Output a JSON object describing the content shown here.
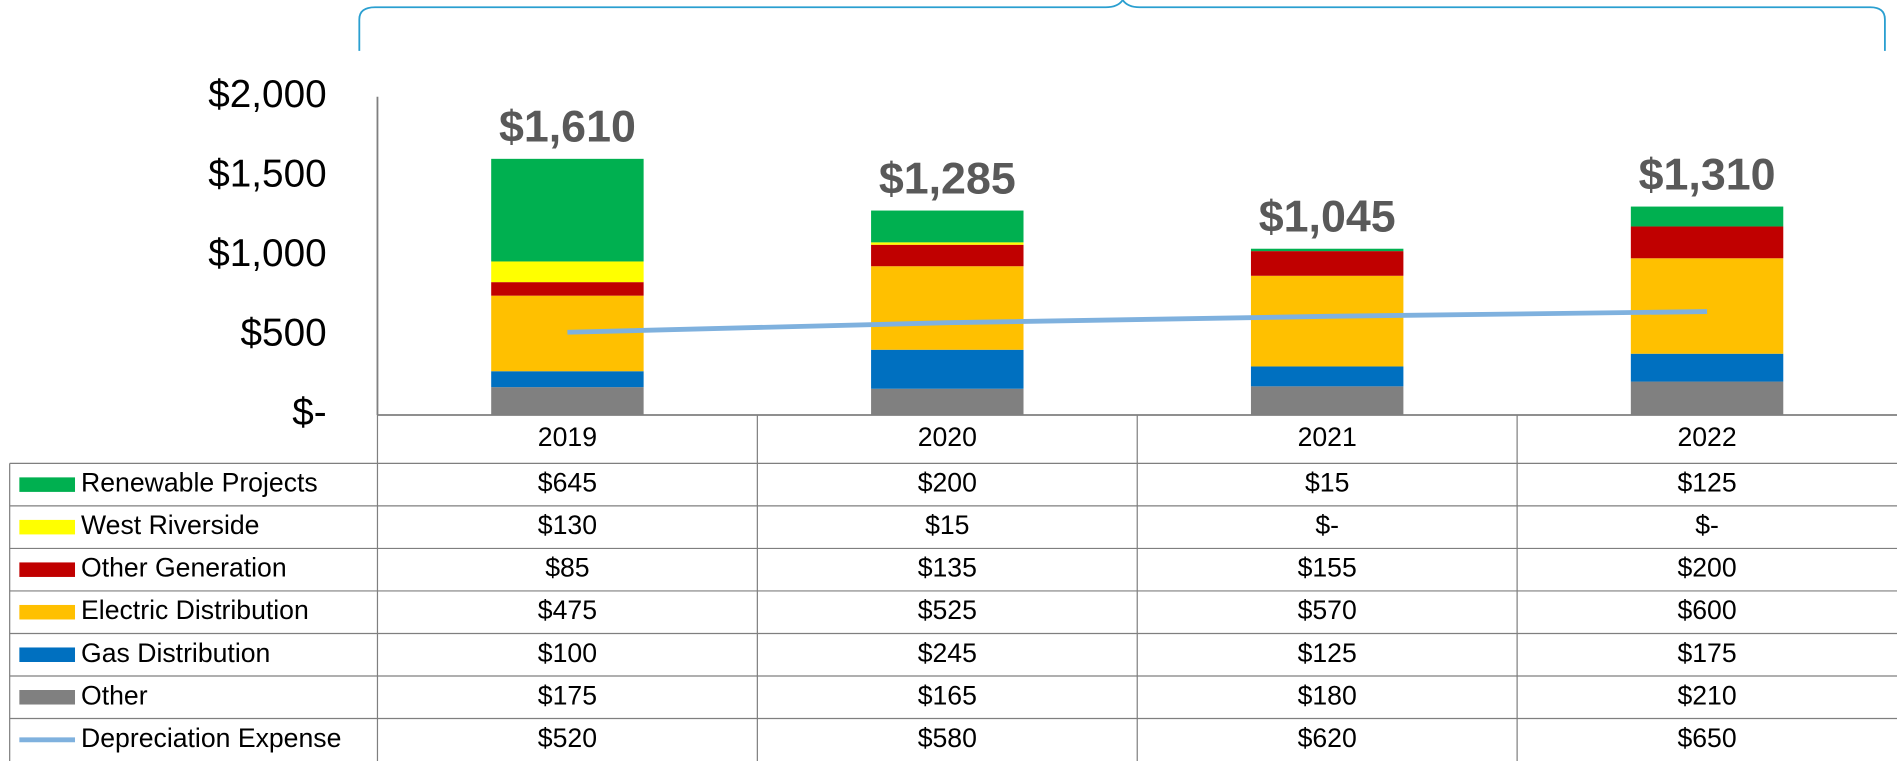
{
  "chart_data": {
    "type": "stacked-bar",
    "categories": [
      "2019",
      "2020",
      "2021",
      "2022"
    ],
    "series": [
      {
        "name": "Renewable Projects",
        "color": "#00b050",
        "values": [
          645,
          200,
          15,
          125
        ],
        "value_labels": [
          "$645",
          "$200",
          "$15",
          "$125"
        ]
      },
      {
        "name": "West Riverside",
        "color": "#ffff00",
        "values": [
          130,
          15,
          0,
          0
        ],
        "value_labels": [
          "$130",
          "$15",
          "$-",
          "$-"
        ]
      },
      {
        "name": "Other Generation",
        "color": "#c00000",
        "values": [
          85,
          135,
          155,
          200
        ],
        "value_labels": [
          "$85",
          "$135",
          "$155",
          "$200"
        ]
      },
      {
        "name": "Electric Distribution",
        "color": "#ffc000",
        "values": [
          475,
          525,
          570,
          600
        ],
        "value_labels": [
          "$475",
          "$525",
          "$570",
          "$600"
        ]
      },
      {
        "name": "Gas Distribution",
        "color": "#0070c0",
        "values": [
          100,
          245,
          125,
          175
        ],
        "value_labels": [
          "$100",
          "$245",
          "$125",
          "$175"
        ]
      },
      {
        "name": "Other",
        "color": "#808080",
        "values": [
          175,
          165,
          180,
          210
        ],
        "value_labels": [
          "$175",
          "$165",
          "$180",
          "$210"
        ]
      },
      {
        "name": "Depreciation Expense",
        "color": "#7fb1de",
        "type": "line",
        "values": [
          520,
          580,
          620,
          650
        ],
        "value_labels": [
          "$520",
          "$580",
          "$620",
          "$650"
        ]
      }
    ],
    "totals": [
      1610,
      1285,
      1045,
      1310
    ],
    "total_labels": [
      "$1,610",
      "$1,285",
      "$1,045",
      "$1,310"
    ],
    "ylim": [
      0,
      2000
    ],
    "yticks": [
      {
        "value": 0,
        "label": "$-"
      },
      {
        "value": 500,
        "label": "$500"
      },
      {
        "value": 1000,
        "label": "$1,000"
      },
      {
        "value": 1500,
        "label": "$1,500"
      },
      {
        "value": 2000,
        "label": "$2,000"
      }
    ],
    "grid": false
  }
}
